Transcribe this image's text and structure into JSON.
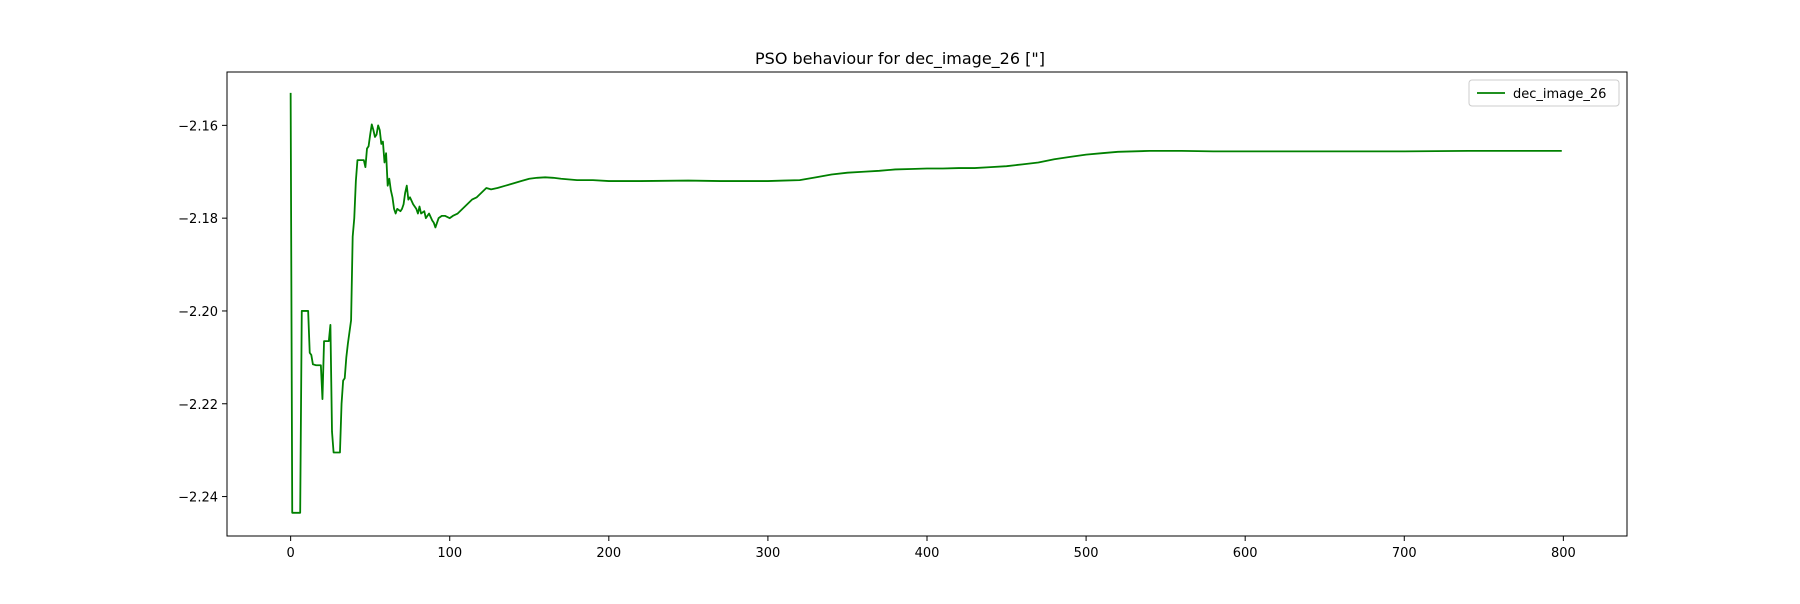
{
  "chart_data": {
    "type": "line",
    "title": "PSO behaviour for dec_image_26 [\"]",
    "xlabel": "",
    "ylabel": "",
    "xlim": [
      -40,
      840
    ],
    "ylim": [
      -2.2485,
      -2.1485
    ],
    "x_ticks": [
      0,
      100,
      200,
      300,
      400,
      500,
      600,
      700,
      800
    ],
    "x_tick_labels": [
      "0",
      "100",
      "200",
      "300",
      "400",
      "500",
      "600",
      "700",
      "800"
    ],
    "y_ticks": [
      -2.16,
      -2.18,
      -2.2,
      -2.22,
      -2.24
    ],
    "y_tick_labels": [
      "−2.16",
      "−2.18",
      "−2.20",
      "−2.22",
      "−2.24"
    ],
    "grid": false,
    "legend_position": "top-right",
    "series": [
      {
        "name": "dec_image_26",
        "color": "#008000",
        "points": [
          [
            0,
            -2.153
          ],
          [
            1,
            -2.2435
          ],
          [
            2,
            -2.2435
          ],
          [
            4,
            -2.2435
          ],
          [
            5,
            -2.2435
          ],
          [
            6,
            -2.2435
          ],
          [
            7,
            -2.2
          ],
          [
            8,
            -2.2
          ],
          [
            10,
            -2.2
          ],
          [
            11,
            -2.2
          ],
          [
            12,
            -2.209
          ],
          [
            13,
            -2.2095
          ],
          [
            14,
            -2.2115
          ],
          [
            16,
            -2.2117
          ],
          [
            18,
            -2.2117
          ],
          [
            19,
            -2.2117
          ],
          [
            20,
            -2.219
          ],
          [
            21,
            -2.2065
          ],
          [
            23,
            -2.2065
          ],
          [
            24,
            -2.2065
          ],
          [
            25,
            -2.203
          ],
          [
            26,
            -2.226
          ],
          [
            27,
            -2.2305
          ],
          [
            29,
            -2.2305
          ],
          [
            31,
            -2.2305
          ],
          [
            32,
            -2.22
          ],
          [
            33,
            -2.215
          ],
          [
            34,
            -2.2145
          ],
          [
            35,
            -2.21
          ],
          [
            36,
            -2.207
          ],
          [
            38,
            -2.202
          ],
          [
            39,
            -2.184
          ],
          [
            40,
            -2.18
          ],
          [
            41,
            -2.172
          ],
          [
            42,
            -2.1675
          ],
          [
            44,
            -2.1675
          ],
          [
            46,
            -2.1675
          ],
          [
            47,
            -2.169
          ],
          [
            48,
            -2.165
          ],
          [
            49,
            -2.1645
          ],
          [
            50,
            -2.162
          ],
          [
            51,
            -2.1598
          ],
          [
            52,
            -2.161
          ],
          [
            53,
            -2.1625
          ],
          [
            54,
            -2.162
          ],
          [
            55,
            -2.16
          ],
          [
            56,
            -2.161
          ],
          [
            57,
            -2.164
          ],
          [
            58,
            -2.1635
          ],
          [
            59,
            -2.168
          ],
          [
            60,
            -2.166
          ],
          [
            61,
            -2.173
          ],
          [
            62,
            -2.1715
          ],
          [
            63,
            -2.174
          ],
          [
            64,
            -2.1755
          ],
          [
            65,
            -2.178
          ],
          [
            66,
            -2.179
          ],
          [
            67,
            -2.178
          ],
          [
            69,
            -2.1785
          ],
          [
            70,
            -2.178
          ],
          [
            71,
            -2.177
          ],
          [
            72,
            -2.1745
          ],
          [
            73,
            -2.173
          ],
          [
            74,
            -2.176
          ],
          [
            75,
            -2.1755
          ],
          [
            77,
            -2.177
          ],
          [
            79,
            -2.178
          ],
          [
            80,
            -2.179
          ],
          [
            81,
            -2.1775
          ],
          [
            82,
            -2.179
          ],
          [
            84,
            -2.1785
          ],
          [
            85,
            -2.18
          ],
          [
            87,
            -2.179
          ],
          [
            89,
            -2.1805
          ],
          [
            90,
            -2.181
          ],
          [
            91,
            -2.182
          ],
          [
            93,
            -2.18
          ],
          [
            95,
            -2.1795
          ],
          [
            97,
            -2.1795
          ],
          [
            100,
            -2.18
          ],
          [
            102,
            -2.1795
          ],
          [
            105,
            -2.179
          ],
          [
            108,
            -2.178
          ],
          [
            111,
            -2.177
          ],
          [
            114,
            -2.176
          ],
          [
            117,
            -2.1755
          ],
          [
            120,
            -2.1745
          ],
          [
            123,
            -2.1735
          ],
          [
            126,
            -2.1738
          ],
          [
            130,
            -2.1735
          ],
          [
            135,
            -2.173
          ],
          [
            140,
            -2.1725
          ],
          [
            145,
            -2.172
          ],
          [
            150,
            -2.1715
          ],
          [
            155,
            -2.1713
          ],
          [
            160,
            -2.1712
          ],
          [
            165,
            -2.1713
          ],
          [
            170,
            -2.1715
          ],
          [
            180,
            -2.1718
          ],
          [
            190,
            -2.1718
          ],
          [
            200,
            -2.172
          ],
          [
            220,
            -2.172
          ],
          [
            250,
            -2.1719
          ],
          [
            270,
            -2.172
          ],
          [
            300,
            -2.172
          ],
          [
            310,
            -2.1719
          ],
          [
            320,
            -2.1718
          ],
          [
            330,
            -2.1712
          ],
          [
            340,
            -2.1706
          ],
          [
            350,
            -2.1702
          ],
          [
            360,
            -2.17
          ],
          [
            370,
            -2.1698
          ],
          [
            380,
            -2.1695
          ],
          [
            390,
            -2.1694
          ],
          [
            400,
            -2.1693
          ],
          [
            410,
            -2.1693
          ],
          [
            420,
            -2.1692
          ],
          [
            430,
            -2.1692
          ],
          [
            440,
            -2.169
          ],
          [
            450,
            -2.1688
          ],
          [
            460,
            -2.1684
          ],
          [
            470,
            -2.168
          ],
          [
            480,
            -2.1673
          ],
          [
            490,
            -2.1668
          ],
          [
            500,
            -2.1663
          ],
          [
            510,
            -2.166
          ],
          [
            520,
            -2.1657
          ],
          [
            540,
            -2.1655
          ],
          [
            560,
            -2.1655
          ],
          [
            580,
            -2.1656
          ],
          [
            600,
            -2.1656
          ],
          [
            650,
            -2.1656
          ],
          [
            700,
            -2.1656
          ],
          [
            740,
            -2.1655
          ],
          [
            780,
            -2.1655
          ],
          [
            799,
            -2.1655
          ]
        ]
      }
    ]
  }
}
